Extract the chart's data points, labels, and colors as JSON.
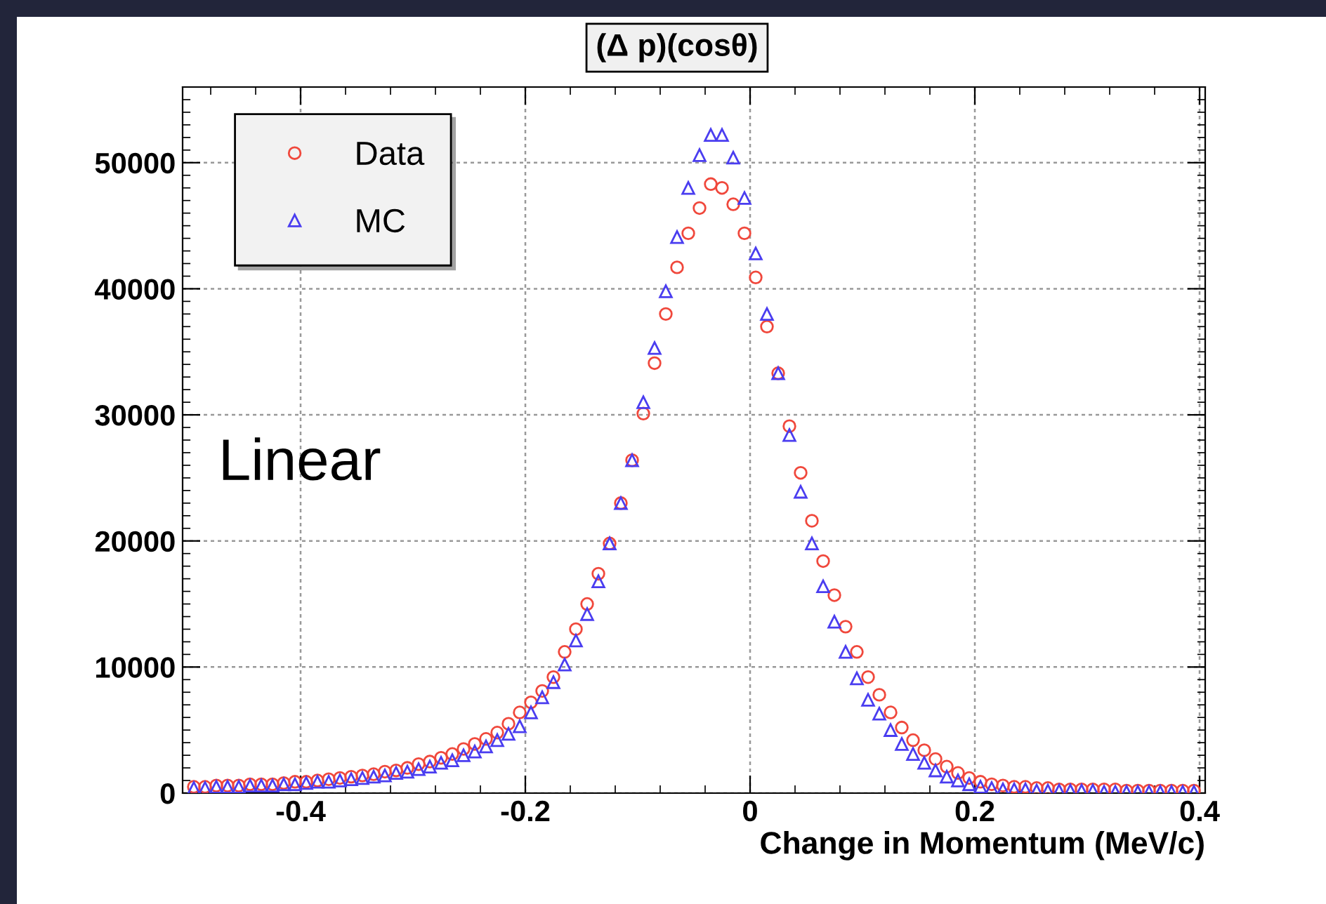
{
  "chart_data": {
    "type": "scatter",
    "title": "(Δ p)(cosθ)",
    "xlabel": "Change in Momentum (MeV/c)",
    "x": [
      -0.495,
      -0.485,
      -0.475,
      -0.465,
      -0.455,
      -0.445,
      -0.435,
      -0.425,
      -0.415,
      -0.405,
      -0.395,
      -0.385,
      -0.375,
      -0.365,
      -0.355,
      -0.345,
      -0.335,
      -0.325,
      -0.315,
      -0.305,
      -0.295,
      -0.285,
      -0.275,
      -0.265,
      -0.255,
      -0.245,
      -0.235,
      -0.225,
      -0.215,
      -0.205,
      -0.195,
      -0.185,
      -0.175,
      -0.165,
      -0.155,
      -0.145,
      -0.135,
      -0.125,
      -0.115,
      -0.105,
      -0.095,
      -0.085,
      -0.075,
      -0.065,
      -0.055,
      -0.045,
      -0.035,
      -0.025,
      -0.015,
      -0.005,
      0.005,
      0.015,
      0.025,
      0.035,
      0.045,
      0.055,
      0.065,
      0.075,
      0.085,
      0.095,
      0.105,
      0.115,
      0.125,
      0.135,
      0.145,
      0.155,
      0.165,
      0.175,
      0.185,
      0.195,
      0.205,
      0.215,
      0.225,
      0.235,
      0.245,
      0.255,
      0.265,
      0.275,
      0.285,
      0.295,
      0.305,
      0.315,
      0.325,
      0.335,
      0.345,
      0.355,
      0.365,
      0.375,
      0.385,
      0.395
    ],
    "series": [
      {
        "name": "Data",
        "color": "#f0483c",
        "marker": "circle",
        "values": [
          500,
          500,
          600,
          600,
          600,
          700,
          700,
          700,
          800,
          900,
          900,
          1000,
          1100,
          1200,
          1300,
          1400,
          1500,
          1700,
          1800,
          2000,
          2300,
          2500,
          2800,
          3100,
          3500,
          3900,
          4300,
          4800,
          5500,
          6400,
          7200,
          8100,
          9200,
          11200,
          13000,
          15000,
          17400,
          19800,
          23000,
          26400,
          30100,
          34100,
          38000,
          41700,
          44400,
          46400,
          48300,
          48000,
          46700,
          44400,
          40900,
          37000,
          33300,
          29100,
          25400,
          21600,
          18400,
          15700,
          13200,
          11200,
          9200,
          7800,
          6400,
          5200,
          4200,
          3400,
          2700,
          2100,
          1600,
          1200,
          900,
          700,
          600,
          500,
          500,
          400,
          400,
          300,
          300,
          300,
          300,
          300,
          300,
          200,
          200,
          200,
          200,
          200,
          200,
          200
        ]
      },
      {
        "name": "MC",
        "color": "#4a3df0",
        "marker": "triangle",
        "values": [
          400,
          400,
          500,
          500,
          500,
          600,
          600,
          600,
          700,
          700,
          800,
          900,
          900,
          1000,
          1100,
          1200,
          1300,
          1400,
          1600,
          1700,
          1900,
          2100,
          2400,
          2600,
          3000,
          3300,
          3700,
          4200,
          4700,
          5300,
          6400,
          7600,
          8800,
          10200,
          12100,
          14200,
          16800,
          19800,
          23000,
          26400,
          31000,
          35300,
          39800,
          44100,
          48000,
          50600,
          52200,
          52200,
          50400,
          47200,
          42800,
          38000,
          33300,
          28400,
          23900,
          19800,
          16400,
          13600,
          11200,
          9100,
          7400,
          6300,
          5000,
          3900,
          3100,
          2400,
          1800,
          1300,
          1000,
          700,
          500,
          400,
          300,
          300,
          300,
          200,
          200,
          200,
          200,
          200,
          200,
          100,
          100,
          100,
          100,
          100,
          100,
          100,
          100,
          100
        ]
      }
    ],
    "xlim": [
      -0.505,
      0.405
    ],
    "ylim": [
      0,
      56000
    ],
    "xticks": [
      {
        "value": -0.4,
        "label": "-0.4"
      },
      {
        "value": -0.2,
        "label": "-0.2"
      },
      0,
      0.2,
      0.4
    ],
    "yticks": [
      0,
      10000,
      20000,
      30000,
      40000,
      50000
    ],
    "annotations": [
      "Linear"
    ],
    "grid": true,
    "legend": "top left"
  }
}
